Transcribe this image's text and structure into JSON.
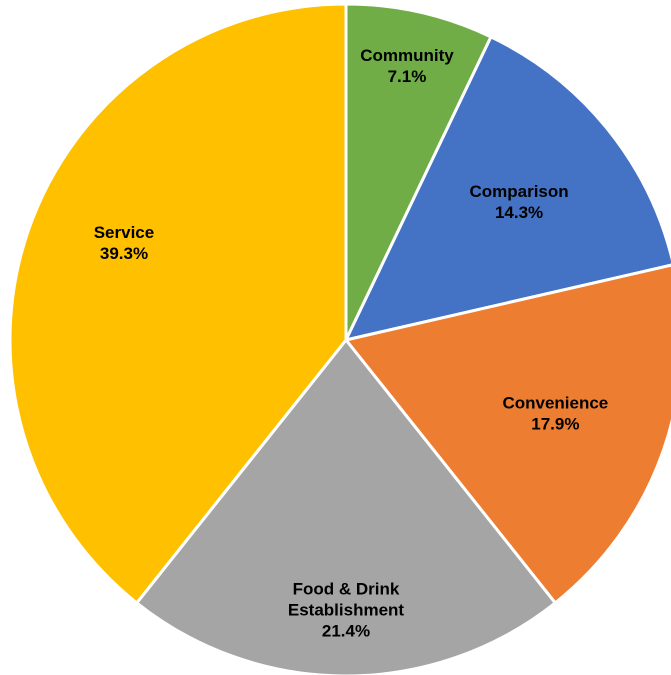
{
  "chart_data": {
    "type": "pie",
    "title": "",
    "start_angle_deg": 0,
    "direction": "clockwise",
    "slices": [
      {
        "label_lines": [
          "Community"
        ],
        "value": 7.1,
        "value_label": "7.1%",
        "color": "#70AD47"
      },
      {
        "label_lines": [
          "Comparison"
        ],
        "value": 14.3,
        "value_label": "14.3%",
        "color": "#4472C4"
      },
      {
        "label_lines": [
          "Convenience"
        ],
        "value": 17.9,
        "value_label": "17.9%",
        "color": "#ED7D31"
      },
      {
        "label_lines": [
          "Food & Drink",
          "Establishment"
        ],
        "value": 21.4,
        "value_label": "21.4%",
        "color": "#A5A5A5"
      },
      {
        "label_lines": [
          "Service"
        ],
        "value": 39.3,
        "value_label": "39.3%",
        "color": "#FFC000"
      }
    ]
  }
}
